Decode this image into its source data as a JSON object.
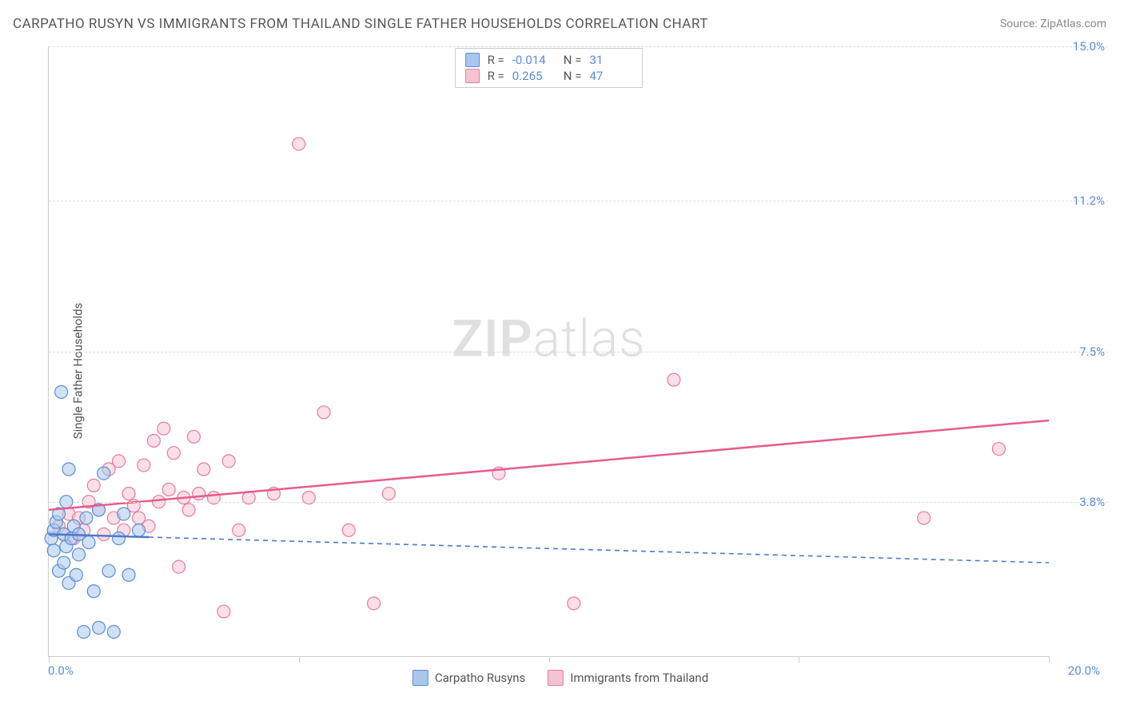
{
  "title": "CARPATHO RUSYN VS IMMIGRANTS FROM THAILAND SINGLE FATHER HOUSEHOLDS CORRELATION CHART",
  "source": "Source: ZipAtlas.com",
  "ylabel": "Single Father Households",
  "watermark_a": "ZIP",
  "watermark_b": "atlas",
  "xlim": [
    0,
    20
  ],
  "ylim": [
    0,
    15
  ],
  "x_ticks": [
    0,
    5,
    10,
    15,
    20
  ],
  "y_gridlines": [
    3.8,
    7.5,
    11.2,
    15.0
  ],
  "y_right_labels": [
    "3.8%",
    "7.5%",
    "11.2%",
    "15.0%"
  ],
  "x_min_label": "0.0%",
  "x_max_label": "20.0%",
  "colors": {
    "blue_fill": "#a9c6ec",
    "blue_stroke": "#5b8dd6",
    "pink_fill": "#f6c4d1",
    "pink_stroke": "#e77aa0",
    "blue_line": "#4a7bc8",
    "pink_line": "#e85b8c",
    "grid": "#dddddd",
    "axis": "#cccccc",
    "text": "#555555",
    "value_text": "#5b8dd6",
    "bg": "#ffffff"
  },
  "series_a": {
    "label": "Carpatho Rusyns",
    "r": "-0.014",
    "n": "31",
    "trend": {
      "x1": 0,
      "y1": 3.0,
      "x2": 20,
      "y2": 2.3,
      "solid_until_x": 2.0
    },
    "points": [
      [
        0.05,
        2.9
      ],
      [
        0.1,
        3.1
      ],
      [
        0.1,
        2.6
      ],
      [
        0.15,
        3.3
      ],
      [
        0.2,
        2.1
      ],
      [
        0.2,
        3.5
      ],
      [
        0.25,
        6.5
      ],
      [
        0.3,
        3.0
      ],
      [
        0.3,
        2.3
      ],
      [
        0.35,
        2.7
      ],
      [
        0.4,
        4.6
      ],
      [
        0.4,
        1.8
      ],
      [
        0.45,
        2.9
      ],
      [
        0.5,
        3.2
      ],
      [
        0.55,
        2.0
      ],
      [
        0.6,
        2.5
      ],
      [
        0.7,
        0.6
      ],
      [
        0.75,
        3.4
      ],
      [
        0.8,
        2.8
      ],
      [
        0.9,
        1.6
      ],
      [
        1.0,
        3.6
      ],
      [
        1.1,
        4.5
      ],
      [
        1.2,
        2.1
      ],
      [
        1.3,
        0.6
      ],
      [
        1.4,
        2.9
      ],
      [
        1.5,
        3.5
      ],
      [
        1.6,
        2.0
      ],
      [
        1.8,
        3.1
      ],
      [
        1.0,
        0.7
      ],
      [
        0.6,
        3.0
      ],
      [
        0.35,
        3.8
      ]
    ]
  },
  "series_b": {
    "label": "Immigrants from Thailand",
    "r": "0.265",
    "n": "47",
    "trend": {
      "x1": 0,
      "y1": 3.6,
      "x2": 20,
      "y2": 5.8
    },
    "points": [
      [
        0.2,
        3.2
      ],
      [
        0.3,
        3.0
      ],
      [
        0.4,
        3.5
      ],
      [
        0.5,
        2.9
      ],
      [
        0.6,
        3.4
      ],
      [
        0.7,
        3.1
      ],
      [
        0.8,
        3.8
      ],
      [
        0.9,
        4.2
      ],
      [
        1.0,
        3.6
      ],
      [
        1.1,
        3.0
      ],
      [
        1.2,
        4.6
      ],
      [
        1.3,
        3.4
      ],
      [
        1.4,
        4.8
      ],
      [
        1.5,
        3.1
      ],
      [
        1.6,
        4.0
      ],
      [
        1.8,
        3.4
      ],
      [
        1.9,
        4.7
      ],
      [
        2.0,
        3.2
      ],
      [
        2.1,
        5.3
      ],
      [
        2.2,
        3.8
      ],
      [
        2.3,
        5.6
      ],
      [
        2.4,
        4.1
      ],
      [
        2.5,
        5.0
      ],
      [
        2.6,
        2.2
      ],
      [
        2.7,
        3.9
      ],
      [
        2.9,
        5.4
      ],
      [
        3.0,
        4.0
      ],
      [
        3.1,
        4.6
      ],
      [
        3.3,
        3.9
      ],
      [
        3.5,
        1.1
      ],
      [
        3.6,
        4.8
      ],
      [
        3.8,
        3.1
      ],
      [
        4.0,
        3.9
      ],
      [
        4.5,
        4.0
      ],
      [
        5.0,
        12.6
      ],
      [
        5.2,
        3.9
      ],
      [
        5.5,
        6.0
      ],
      [
        6.0,
        3.1
      ],
      [
        6.5,
        1.3
      ],
      [
        6.8,
        4.0
      ],
      [
        9.0,
        4.5
      ],
      [
        10.5,
        1.3
      ],
      [
        12.5,
        6.8
      ],
      [
        17.5,
        3.4
      ],
      [
        19.0,
        5.1
      ],
      [
        2.8,
        3.6
      ],
      [
        1.7,
        3.7
      ]
    ]
  },
  "marker_radius": 8,
  "marker_opacity": 0.55,
  "line_width": 2.5,
  "title_fontsize": 17,
  "label_fontsize": 15
}
